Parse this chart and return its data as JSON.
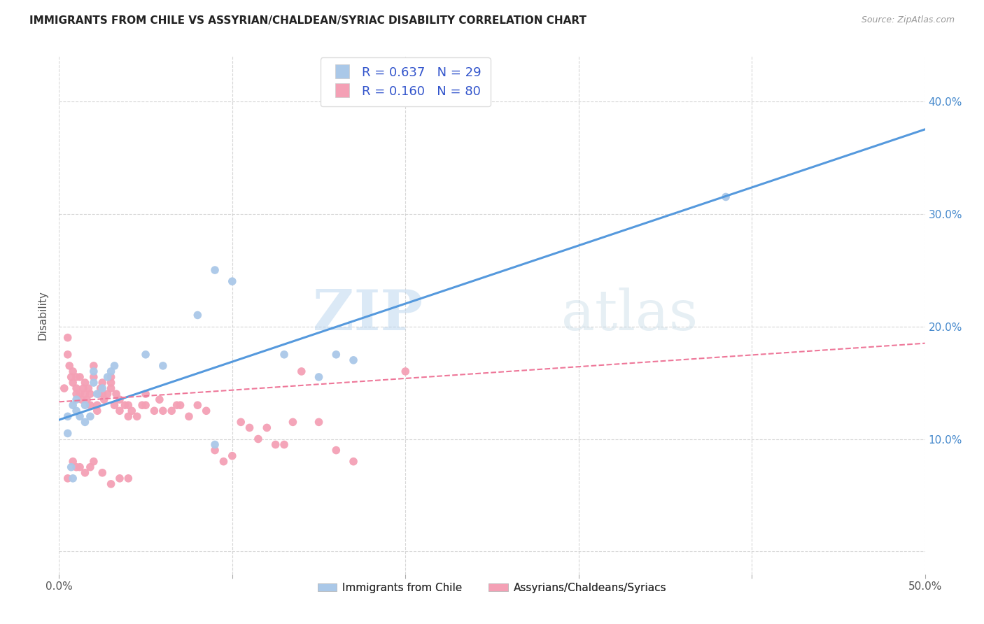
{
  "title": "IMMIGRANTS FROM CHILE VS ASSYRIAN/CHALDEAN/SYRIAC DISABILITY CORRELATION CHART",
  "source": "Source: ZipAtlas.com",
  "ylabel": "Disability",
  "xlim": [
    0.0,
    0.5
  ],
  "ylim": [
    -0.02,
    0.44
  ],
  "yticks": [
    0.0,
    0.1,
    0.2,
    0.3,
    0.4
  ],
  "ytick_labels": [
    "",
    "10.0%",
    "20.0%",
    "30.0%",
    "40.0%"
  ],
  "xticks": [
    0.0,
    0.1,
    0.2,
    0.3,
    0.4,
    0.5
  ],
  "xtick_labels": [
    "0.0%",
    "",
    "",
    "",
    "",
    "50.0%"
  ],
  "blue_scatter_color": "#aac8e8",
  "pink_scatter_color": "#f4a0b5",
  "blue_line_color": "#5599dd",
  "pink_line_color": "#ee7799",
  "legend_R1": "0.637",
  "legend_N1": "29",
  "legend_R2": "0.160",
  "legend_N2": "80",
  "legend_color": "#3355cc",
  "watermark_zip": "ZIP",
  "watermark_atlas": "atlas",
  "blue_points_x": [
    0.005,
    0.008,
    0.01,
    0.01,
    0.012,
    0.015,
    0.015,
    0.018,
    0.02,
    0.02,
    0.022,
    0.025,
    0.028,
    0.03,
    0.032,
    0.05,
    0.06,
    0.08,
    0.09,
    0.1,
    0.13,
    0.15,
    0.16,
    0.17,
    0.385,
    0.005,
    0.007,
    0.008,
    0.09
  ],
  "blue_points_y": [
    0.12,
    0.13,
    0.135,
    0.125,
    0.12,
    0.13,
    0.115,
    0.12,
    0.15,
    0.16,
    0.14,
    0.145,
    0.155,
    0.16,
    0.165,
    0.175,
    0.165,
    0.21,
    0.25,
    0.24,
    0.175,
    0.155,
    0.175,
    0.17,
    0.315,
    0.105,
    0.075,
    0.065,
    0.095
  ],
  "pink_points_x": [
    0.003,
    0.005,
    0.005,
    0.006,
    0.007,
    0.008,
    0.008,
    0.01,
    0.01,
    0.01,
    0.012,
    0.012,
    0.013,
    0.014,
    0.015,
    0.015,
    0.016,
    0.017,
    0.018,
    0.018,
    0.02,
    0.02,
    0.022,
    0.022,
    0.023,
    0.024,
    0.025,
    0.025,
    0.026,
    0.028,
    0.03,
    0.03,
    0.03,
    0.032,
    0.033,
    0.035,
    0.035,
    0.038,
    0.04,
    0.04,
    0.042,
    0.045,
    0.048,
    0.05,
    0.05,
    0.055,
    0.058,
    0.06,
    0.065,
    0.068,
    0.07,
    0.075,
    0.08,
    0.085,
    0.09,
    0.095,
    0.1,
    0.105,
    0.11,
    0.115,
    0.12,
    0.125,
    0.13,
    0.135,
    0.14,
    0.15,
    0.16,
    0.17,
    0.2,
    0.005,
    0.008,
    0.01,
    0.012,
    0.015,
    0.018,
    0.02,
    0.025,
    0.03,
    0.035,
    0.04
  ],
  "pink_points_y": [
    0.145,
    0.19,
    0.175,
    0.165,
    0.155,
    0.16,
    0.15,
    0.155,
    0.145,
    0.14,
    0.155,
    0.14,
    0.135,
    0.145,
    0.15,
    0.14,
    0.135,
    0.145,
    0.14,
    0.13,
    0.165,
    0.155,
    0.125,
    0.13,
    0.14,
    0.145,
    0.15,
    0.14,
    0.135,
    0.14,
    0.145,
    0.15,
    0.155,
    0.13,
    0.14,
    0.125,
    0.135,
    0.13,
    0.12,
    0.13,
    0.125,
    0.12,
    0.13,
    0.14,
    0.13,
    0.125,
    0.135,
    0.125,
    0.125,
    0.13,
    0.13,
    0.12,
    0.13,
    0.125,
    0.09,
    0.08,
    0.085,
    0.115,
    0.11,
    0.1,
    0.11,
    0.095,
    0.095,
    0.115,
    0.16,
    0.115,
    0.09,
    0.08,
    0.16,
    0.065,
    0.08,
    0.075,
    0.075,
    0.07,
    0.075,
    0.08,
    0.07,
    0.06,
    0.065,
    0.065
  ]
}
